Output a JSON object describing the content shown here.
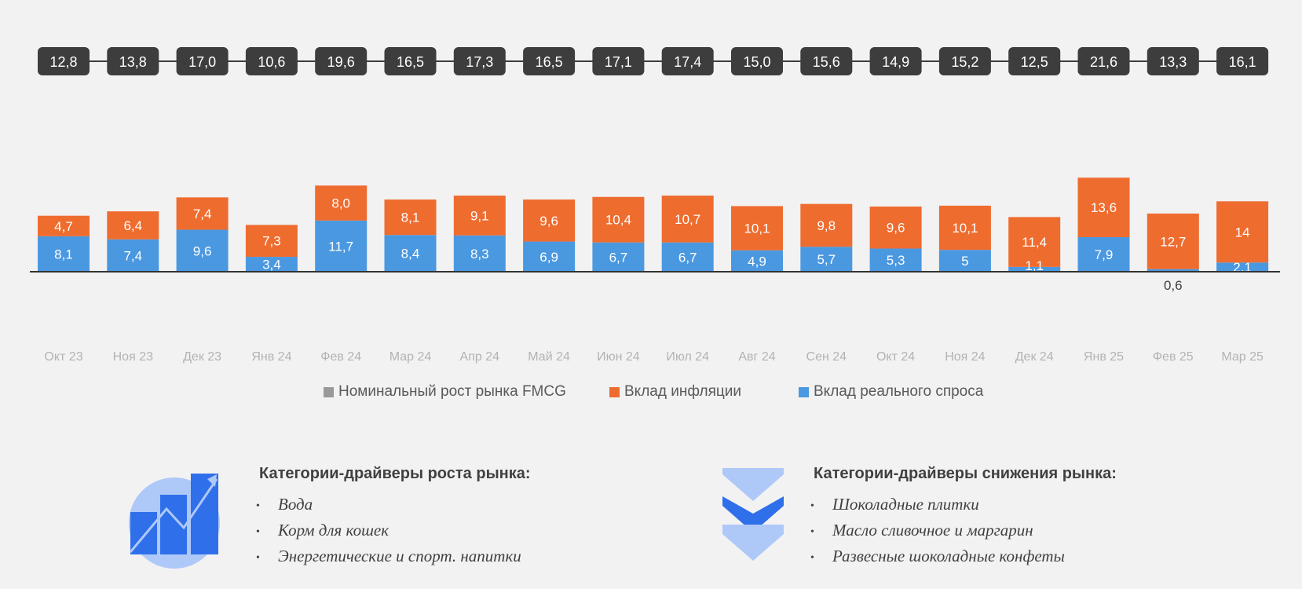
{
  "chart_data": {
    "type": "bar",
    "stacked": true,
    "categories": [
      "Окт 23",
      "Ноя 23",
      "Дек 23",
      "Янв 24",
      "Фев 24",
      "Мар 24",
      "Апр 24",
      "Май 24",
      "Июн 24",
      "Июл 24",
      "Авг 24",
      "Сен 24",
      "Окт 24",
      "Ноя 24",
      "Дек 24",
      "Янв 25",
      "Фев 25",
      "Мар 25"
    ],
    "totals": [
      "12,8",
      "13,8",
      "17,0",
      "10,6",
      "19,6",
      "16,5",
      "17,3",
      "16,5",
      "17,1",
      "17,4",
      "15,0",
      "15,6",
      "14,9",
      "15,2",
      "12,5",
      "21,6",
      "13,3",
      "16,1"
    ],
    "series": [
      {
        "name": "Вклад реального спроса",
        "color": "#4a98e0",
        "values": [
          8.1,
          7.4,
          9.6,
          3.4,
          11.7,
          8.4,
          8.3,
          6.9,
          6.7,
          6.7,
          4.9,
          5.7,
          5.3,
          5,
          1.1,
          7.9,
          0.6,
          2.1
        ],
        "labels": [
          "8,1",
          "7,4",
          "9,6",
          "3,4",
          "11,7",
          "8,4",
          "8,3",
          "6,9",
          "6,7",
          "6,7",
          "4,9",
          "5,7",
          "5,3",
          "5",
          "1,1",
          "7,9",
          "0,6",
          "2,1"
        ]
      },
      {
        "name": "Вклад инфляции",
        "color": "#ef6c2f",
        "values": [
          4.7,
          6.4,
          7.4,
          7.3,
          8.0,
          8.1,
          9.1,
          9.6,
          10.4,
          10.7,
          10.1,
          9.8,
          9.6,
          10.1,
          11.4,
          13.6,
          12.7,
          14
        ],
        "labels": [
          "4,7",
          "6,4",
          "7,4",
          "7,3",
          "8,0",
          "8,1",
          "9,1",
          "9,6",
          "10,4",
          "10,7",
          "10,1",
          "9,8",
          "9,6",
          "10,1",
          "11,4",
          "13,6",
          "12,7",
          "14"
        ]
      }
    ],
    "legend": [
      {
        "label": "Номинальный рост рынка FMCG",
        "color": "#999999"
      },
      {
        "label": "Вклад инфляции",
        "color": "#ef6c2f"
      },
      {
        "label": "Вклад реального спроса",
        "color": "#4a98e0"
      }
    ],
    "legend_position": "bottom",
    "grid": false
  },
  "growth_panel": {
    "title": "Категории-драйверы роста рынка:",
    "items": [
      "Вода",
      "Корм для кошек",
      "Энергетические и спорт. напитки"
    ],
    "icon": "growth-chart-icon"
  },
  "decline_panel": {
    "title": "Категории-драйверы снижения рынка:",
    "items": [
      "Шоколадные плитки",
      "Масло сливочное и маргарин",
      "Развесные шоколадные конфеты"
    ],
    "icon": "down-chevrons-icon"
  },
  "bullet_char": "•",
  "colors": {
    "total_box": "#3d3d3d",
    "axis": "#333333",
    "tick_label": "#b3b3b3",
    "icon_blue": "#2f6fea",
    "icon_light": "#aec8f8"
  }
}
